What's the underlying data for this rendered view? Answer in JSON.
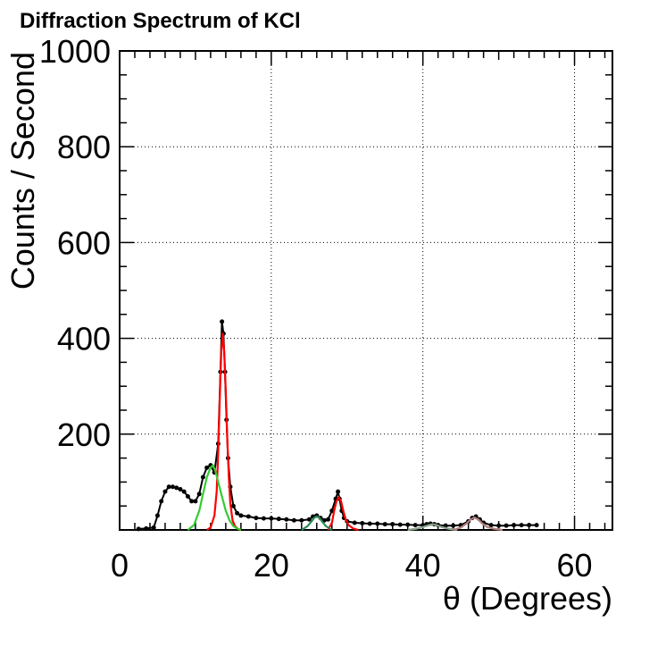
{
  "chart_data": {
    "type": "line",
    "title": "Diffraction Spectrum of KCl",
    "xlabel": "θ (Degrees)",
    "ylabel": "Counts / Second",
    "xlim": [
      0,
      65
    ],
    "ylim": [
      0,
      1000
    ],
    "x_ticks": [
      0,
      20,
      40,
      60
    ],
    "x_tick_labels": [
      "0",
      "20",
      "40",
      "60"
    ],
    "y_ticks": [
      200,
      400,
      600,
      800,
      1000
    ],
    "y_tick_labels": [
      "200",
      "400",
      "600",
      "800",
      "1000"
    ],
    "grid": true,
    "legend": "none",
    "series": [
      {
        "color": "#000000",
        "style": "markers-line",
        "x": [
          2.5,
          3.5,
          4.5,
          5.0,
          5.5,
          6.0,
          6.5,
          7.0,
          7.5,
          8.0,
          8.5,
          9.0,
          9.5,
          10.0,
          10.5,
          11.0,
          11.5,
          12.0,
          12.5,
          13.0,
          13.3,
          13.5,
          13.7,
          13.9,
          14.1,
          14.3,
          14.6,
          15.0,
          15.5,
          16.0,
          17.0,
          18.0,
          19.0,
          20.0,
          21.0,
          22.0,
          23.0,
          24.0,
          25.0,
          25.5,
          26.0,
          26.5,
          27.0,
          27.5,
          28.0,
          28.5,
          28.8,
          29.0,
          29.3,
          29.6,
          30.0,
          31.0,
          32.0,
          33.0,
          34.0,
          35.0,
          36.0,
          37.0,
          38.0,
          39.0,
          40.0,
          40.5,
          41.0,
          41.5,
          42.0,
          43.0,
          44.0,
          45.0,
          46.0,
          46.5,
          47.0,
          47.5,
          48.0,
          49.0,
          50.0,
          51.0,
          52.0,
          53.0,
          54.0,
          55.0
        ],
        "y": [
          2,
          3,
          5,
          30,
          60,
          80,
          90,
          90,
          88,
          85,
          80,
          70,
          60,
          60,
          75,
          110,
          130,
          135,
          120,
          180,
          330,
          435,
          410,
          330,
          230,
          150,
          90,
          50,
          35,
          30,
          28,
          25,
          24,
          24,
          23,
          22,
          20,
          20,
          22,
          28,
          30,
          25,
          20,
          22,
          40,
          65,
          80,
          65,
          40,
          25,
          18,
          15,
          14,
          13,
          13,
          12,
          12,
          11,
          11,
          10,
          10,
          12,
          13,
          12,
          10,
          9,
          9,
          10,
          18,
          25,
          28,
          22,
          15,
          10,
          9,
          9,
          10,
          10,
          10,
          10
        ]
      },
      {
        "color": "#ff0000",
        "style": "fit",
        "x": [
          11.5,
          12.0,
          12.5,
          12.8,
          13.0,
          13.2,
          13.4,
          13.6,
          13.8,
          14.0,
          14.2,
          14.4,
          14.6,
          14.9,
          15.2,
          15.6,
          16.0
        ],
        "y": [
          0,
          5,
          30,
          80,
          160,
          270,
          370,
          410,
          370,
          290,
          190,
          110,
          55,
          20,
          8,
          2,
          0
        ]
      },
      {
        "color": "#33cc33",
        "style": "fit",
        "x": [
          9.0,
          9.8,
          10.5,
          11.0,
          11.5,
          12.0,
          12.3,
          12.6,
          13.0,
          13.5,
          14.0,
          14.5,
          15.0,
          15.5,
          16.0
        ],
        "y": [
          0,
          10,
          40,
          75,
          110,
          130,
          135,
          125,
          100,
          70,
          40,
          20,
          8,
          3,
          0
        ]
      },
      {
        "color": "#ff0000",
        "style": "fit",
        "x": [
          27.5,
          28.0,
          28.3,
          28.6,
          28.9,
          29.2,
          29.5,
          29.8,
          30.2,
          30.8,
          31.5
        ],
        "y": [
          0,
          15,
          40,
          60,
          68,
          60,
          40,
          22,
          10,
          3,
          0
        ]
      },
      {
        "color": "#2e8b57",
        "style": "fit",
        "x": [
          24.0,
          24.8,
          25.3,
          25.7,
          26.0,
          26.3,
          26.7,
          27.2,
          28.0
        ],
        "y": [
          0,
          8,
          18,
          26,
          28,
          26,
          18,
          8,
          0
        ]
      },
      {
        "color": "#8aa08a",
        "style": "fit",
        "x": [
          38.0,
          39.0,
          40.0,
          40.8,
          41.3,
          41.8,
          42.5,
          43.5,
          44.5
        ],
        "y": [
          0,
          2,
          6,
          10,
          12,
          10,
          6,
          2,
          0
        ]
      },
      {
        "color": "#b08080",
        "style": "fit",
        "x": [
          44.0,
          45.0,
          45.8,
          46.3,
          46.8,
          47.3,
          47.8,
          48.5,
          49.5,
          50.5
        ],
        "y": [
          0,
          5,
          14,
          22,
          26,
          22,
          14,
          6,
          2,
          0
        ]
      }
    ]
  }
}
